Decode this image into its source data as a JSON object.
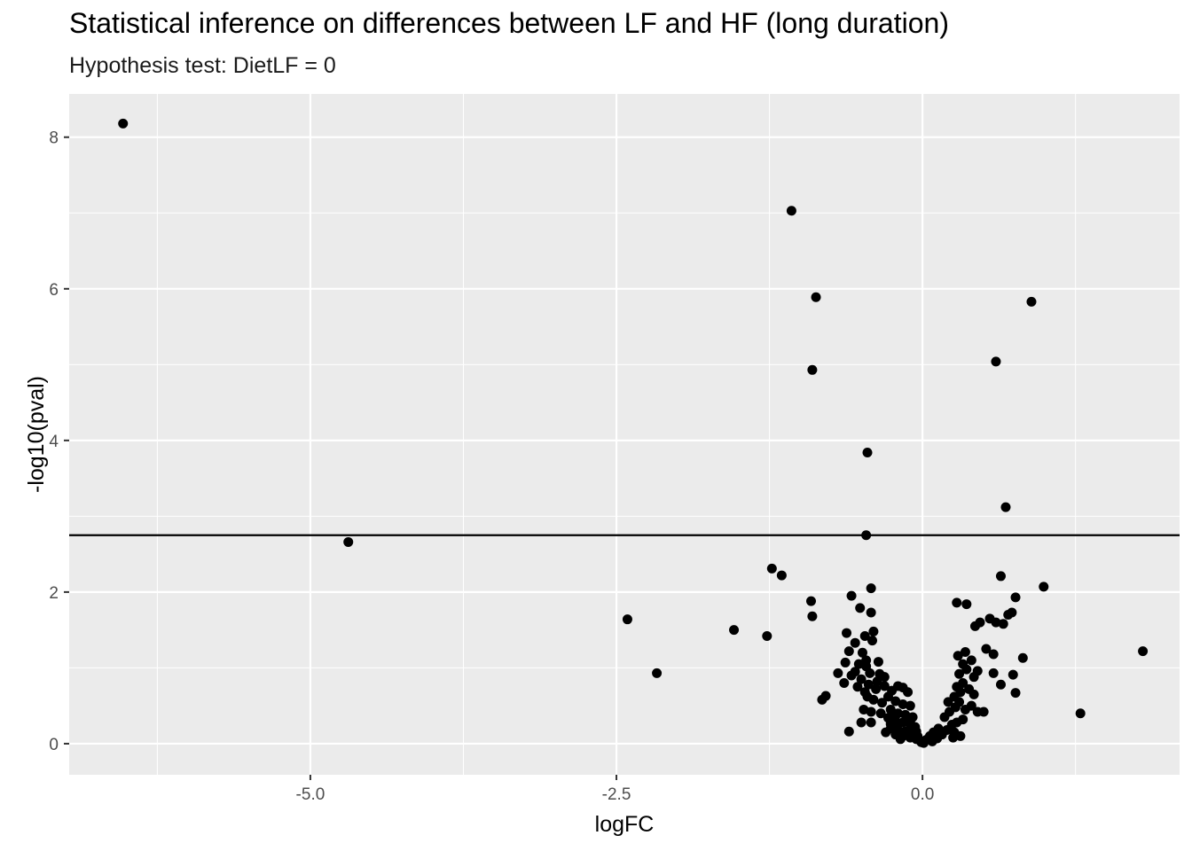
{
  "chart_data": {
    "type": "scatter",
    "title": "Statistical inference on differences between LF and HF (long duration)",
    "subtitle": "Hypothesis test: DietLF = 0",
    "xlabel": "logFC",
    "ylabel": "-log10(pval)",
    "xlim": [
      -6.97,
      2.1
    ],
    "ylim": [
      -0.41,
      8.57
    ],
    "x_ticks": [
      -5.0,
      -2.5,
      0.0
    ],
    "x_tick_labels": [
      "-5.0",
      "-2.5",
      "0.0"
    ],
    "y_ticks": [
      0,
      2,
      4,
      6,
      8
    ],
    "y_tick_labels": [
      "0",
      "2",
      "4",
      "6",
      "8"
    ],
    "hline": 2.75,
    "grid": true,
    "background": "#ebebeb",
    "grid_color": "#ffffff",
    "point_color": "#000000",
    "points": [
      [
        -6.53,
        8.18
      ],
      [
        -4.69,
        2.66
      ],
      [
        -1.07,
        7.03
      ],
      [
        -0.87,
        5.89
      ],
      [
        -0.9,
        4.93
      ],
      [
        -0.45,
        3.84
      ],
      [
        -0.46,
        2.75
      ],
      [
        0.89,
        5.83
      ],
      [
        0.6,
        5.04
      ],
      [
        0.68,
        3.12
      ],
      [
        -2.41,
        1.64
      ],
      [
        -2.17,
        0.93
      ],
      [
        -1.54,
        1.5
      ],
      [
        -1.27,
        1.42
      ],
      [
        -1.23,
        2.31
      ],
      [
        -1.15,
        2.22
      ],
      [
        -0.91,
        1.88
      ],
      [
        -0.9,
        1.68
      ],
      [
        -0.58,
        1.95
      ],
      [
        -0.51,
        1.79
      ],
      [
        -0.42,
        2.05
      ],
      [
        -0.42,
        1.73
      ],
      [
        -0.62,
        1.46
      ],
      [
        -0.55,
        1.33
      ],
      [
        -0.47,
        1.42
      ],
      [
        -0.4,
        1.48
      ],
      [
        -0.6,
        1.22
      ],
      [
        -0.49,
        1.2
      ],
      [
        -0.41,
        1.36
      ],
      [
        -0.63,
        1.07
      ],
      [
        -0.52,
        1.05
      ],
      [
        -0.46,
        1.1
      ],
      [
        -0.36,
        1.08
      ],
      [
        -0.69,
        0.93
      ],
      [
        -0.58,
        0.9
      ],
      [
        -0.5,
        0.85
      ],
      [
        -0.43,
        0.93
      ],
      [
        -0.64,
        0.8
      ],
      [
        -0.53,
        0.75
      ],
      [
        -0.44,
        0.78
      ],
      [
        -0.37,
        0.82
      ],
      [
        -0.31,
        0.76
      ],
      [
        -0.79,
        0.63
      ],
      [
        -0.82,
        0.58
      ],
      [
        -0.45,
        0.62
      ],
      [
        -0.4,
        0.58
      ],
      [
        -0.33,
        0.54
      ],
      [
        -0.28,
        0.62
      ],
      [
        -0.48,
        0.45
      ],
      [
        -0.42,
        0.42
      ],
      [
        -0.5,
        0.28
      ],
      [
        -0.42,
        0.28
      ],
      [
        -0.34,
        0.4
      ],
      [
        -0.6,
        0.16
      ],
      [
        -0.25,
        0.7
      ],
      [
        -0.2,
        0.76
      ],
      [
        -0.16,
        0.74
      ],
      [
        -0.12,
        0.68
      ],
      [
        -0.22,
        0.56
      ],
      [
        -0.16,
        0.52
      ],
      [
        -0.1,
        0.5
      ],
      [
        -0.26,
        0.45
      ],
      [
        -0.2,
        0.4
      ],
      [
        -0.14,
        0.38
      ],
      [
        -0.08,
        0.35
      ],
      [
        -0.28,
        0.34
      ],
      [
        -0.22,
        0.3
      ],
      [
        -0.16,
        0.28
      ],
      [
        -0.1,
        0.25
      ],
      [
        -0.06,
        0.22
      ],
      [
        -0.26,
        0.2
      ],
      [
        -0.2,
        0.18
      ],
      [
        -0.14,
        0.16
      ],
      [
        -0.09,
        0.13
      ],
      [
        -0.04,
        0.1
      ],
      [
        -0.22,
        0.12
      ],
      [
        -0.16,
        0.1
      ],
      [
        -0.1,
        0.08
      ],
      [
        -0.05,
        0.06
      ],
      [
        -0.02,
        0.04
      ],
      [
        -0.18,
        0.06
      ],
      [
        -0.12,
        0.12
      ],
      [
        -0.07,
        0.2
      ],
      [
        -0.01,
        0.02
      ],
      [
        0.01,
        0.01
      ],
      [
        -0.26,
        0.26
      ],
      [
        -0.21,
        0.24
      ],
      [
        -0.3,
        0.15
      ],
      [
        -0.24,
        0.36
      ],
      [
        -0.1,
        0.3
      ],
      [
        -0.05,
        0.16
      ],
      [
        0.03,
        0.05
      ],
      [
        0.06,
        0.1
      ],
      [
        0.09,
        0.15
      ],
      [
        0.13,
        0.2
      ],
      [
        0.08,
        0.03
      ],
      [
        0.12,
        0.07
      ],
      [
        0.16,
        0.12
      ],
      [
        0.2,
        0.18
      ],
      [
        0.24,
        0.25
      ],
      [
        0.18,
        0.35
      ],
      [
        0.22,
        0.42
      ],
      [
        0.27,
        0.48
      ],
      [
        0.21,
        0.55
      ],
      [
        0.26,
        0.62
      ],
      [
        0.31,
        0.68
      ],
      [
        0.28,
        0.75
      ],
      [
        0.33,
        0.8
      ],
      [
        0.38,
        0.72
      ],
      [
        0.42,
        0.65
      ],
      [
        0.3,
        0.55
      ],
      [
        0.35,
        0.45
      ],
      [
        0.4,
        0.5
      ],
      [
        0.45,
        0.42
      ],
      [
        0.5,
        0.42
      ],
      [
        0.28,
        0.28
      ],
      [
        0.33,
        0.32
      ],
      [
        0.26,
        0.15
      ],
      [
        0.31,
        0.1
      ],
      [
        0.25,
        0.08
      ],
      [
        0.3,
        0.92
      ],
      [
        0.36,
        0.98
      ],
      [
        0.42,
        0.88
      ],
      [
        0.33,
        1.05
      ],
      [
        0.29,
        1.16
      ],
      [
        0.35,
        1.21
      ],
      [
        0.4,
        1.1
      ],
      [
        0.45,
        0.96
      ],
      [
        0.28,
        1.86
      ],
      [
        0.36,
        1.84
      ],
      [
        0.43,
        1.55
      ],
      [
        0.47,
        1.6
      ],
      [
        0.52,
        1.25
      ],
      [
        0.58,
        1.18
      ],
      [
        0.55,
        1.65
      ],
      [
        0.6,
        1.6
      ],
      [
        0.66,
        1.58
      ],
      [
        0.7,
        1.7
      ],
      [
        0.73,
        1.73
      ],
      [
        0.76,
        1.93
      ],
      [
        0.64,
        2.21
      ],
      [
        0.99,
        2.07
      ],
      [
        0.58,
        0.93
      ],
      [
        0.64,
        0.78
      ],
      [
        0.74,
        0.91
      ],
      [
        0.76,
        0.67
      ],
      [
        0.82,
        1.13
      ],
      [
        1.29,
        0.4
      ],
      [
        1.8,
        1.22
      ],
      [
        -0.38,
        0.72
      ],
      [
        -0.47,
        0.68
      ],
      [
        -0.35,
        0.92
      ],
      [
        -0.31,
        0.88
      ],
      [
        -0.46,
        1.02
      ],
      [
        -0.55,
        0.95
      ]
    ]
  }
}
